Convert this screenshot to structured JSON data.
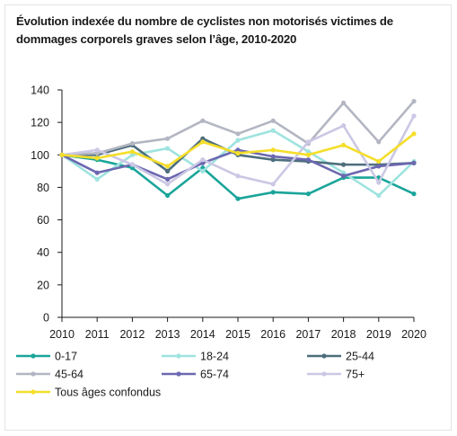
{
  "chart_data": {
    "type": "line",
    "title": "Évolution indexée du nombre de cyclistes non motorisés victimes de dommages corporels graves selon l’âge, 2010-2020",
    "xlabel": "",
    "ylabel": "",
    "x": [
      "2010",
      "2011",
      "2012",
      "2013",
      "2014",
      "2015",
      "2016",
      "2017",
      "2018",
      "2019",
      "2020"
    ],
    "ylim": [
      0,
      140
    ],
    "yticks": [
      0,
      20,
      40,
      60,
      80,
      100,
      120,
      140
    ],
    "grid": false,
    "legend_position": "bottom",
    "series": [
      {
        "name": "0-17",
        "color": "#1aa59a",
        "values": [
          100,
          97,
          92,
          75,
          92,
          73,
          77,
          76,
          86,
          86,
          76
        ]
      },
      {
        "name": "18-24",
        "color": "#9ee3df",
        "values": [
          100,
          85,
          100,
          104,
          90,
          109,
          115,
          102,
          89,
          75,
          96
        ]
      },
      {
        "name": "25-44",
        "color": "#4d6e7c",
        "values": [
          100,
          100,
          106,
          90,
          110,
          100,
          97,
          96,
          94,
          94,
          95
        ]
      },
      {
        "name": "45-64",
        "color": "#b3b6c2",
        "values": [
          100,
          101,
          107,
          110,
          121,
          113,
          121,
          107,
          132,
          108,
          133
        ]
      },
      {
        "name": "65-74",
        "color": "#6c68b0",
        "values": [
          100,
          89,
          94,
          85,
          95,
          103,
          99,
          97,
          87,
          93,
          95
        ]
      },
      {
        "name": "75+",
        "color": "#cbc7e4",
        "values": [
          100,
          103,
          94,
          82,
          97,
          87,
          82,
          108,
          118,
          83,
          124
        ]
      },
      {
        "name": "Tous âges confondus",
        "color": "#f5de2a",
        "values": [
          100,
          98,
          102,
          93,
          108,
          101,
          103,
          100,
          106,
          96,
          113
        ]
      }
    ]
  }
}
